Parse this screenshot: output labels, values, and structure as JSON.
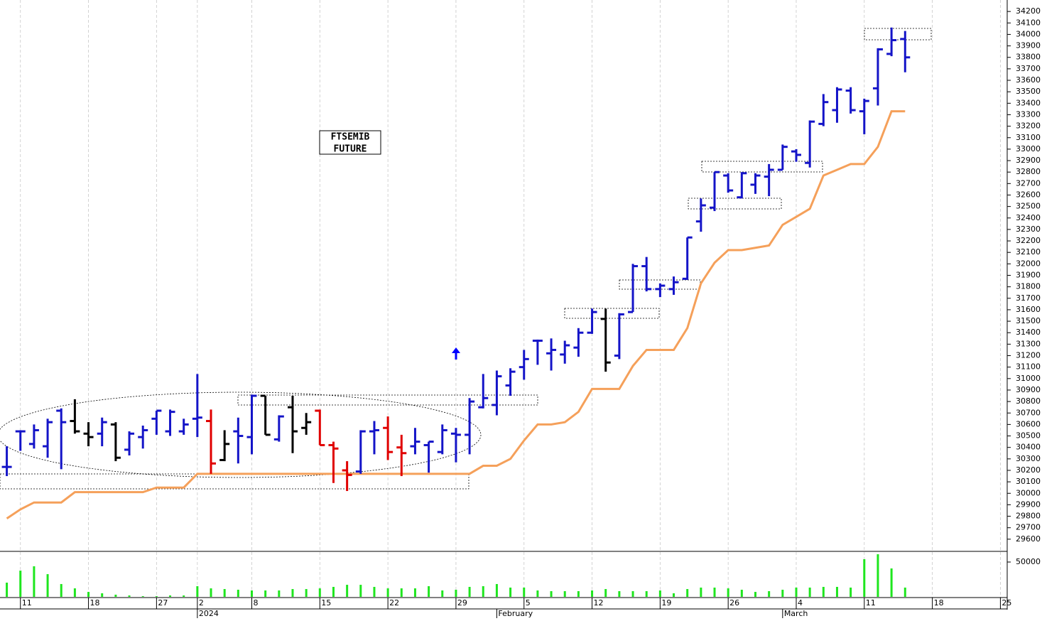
{
  "chart_data": [
    {
      "type": "ohlc",
      "title_lines": [
        "FTSEMIB",
        "FUTURE"
      ],
      "open": [
        30230,
        30540,
        30430,
        30410,
        30720,
        30630,
        30520,
        30520,
        30600,
        30380,
        30490,
        30650,
        30540,
        30540,
        30650,
        30630,
        30290,
        30540,
        30490,
        30850,
        30470,
        30750,
        30570,
        30720,
        30420,
        30200,
        30190,
        30540,
        30570,
        30400,
        30410,
        30420,
        30360,
        30520,
        30510,
        30750,
        30770,
        30940,
        31100,
        31330,
        31220,
        31210,
        31270,
        31400,
        31520,
        31200,
        31580,
        31980,
        31780,
        31780,
        31870,
        32370,
        32490,
        32770,
        32580,
        32690,
        32760,
        32820,
        32980,
        32880,
        33220,
        33340,
        33510,
        33330,
        33530,
        33830,
        33960
      ],
      "high": [
        30410,
        30550,
        30600,
        30650,
        30740,
        30820,
        30620,
        30660,
        30620,
        30540,
        30590,
        30720,
        30730,
        30650,
        31040,
        30730,
        30550,
        30660,
        30860,
        30850,
        30680,
        30850,
        30700,
        30730,
        30450,
        30280,
        30550,
        30630,
        30670,
        30510,
        30570,
        30450,
        30600,
        30570,
        30830,
        31040,
        31070,
        31090,
        31250,
        31340,
        31350,
        31330,
        31440,
        31610,
        31610,
        31570,
        32000,
        32060,
        31830,
        31890,
        32230,
        32570,
        32800,
        32790,
        32800,
        32790,
        32870,
        33040,
        33000,
        33250,
        33480,
        33540,
        33540,
        33440,
        33880,
        34060,
        34030
      ],
      "low": [
        30150,
        30370,
        30390,
        30310,
        30210,
        30520,
        30410,
        30410,
        30280,
        30330,
        30390,
        30510,
        30500,
        30510,
        30490,
        30170,
        30280,
        30260,
        30340,
        30510,
        30450,
        30350,
        30510,
        30420,
        30090,
        30020,
        30170,
        30340,
        30290,
        30150,
        30340,
        30180,
        30340,
        30270,
        30340,
        30740,
        30680,
        30850,
        30990,
        31120,
        31070,
        31130,
        31190,
        31390,
        31060,
        31170,
        31580,
        31760,
        31710,
        31730,
        31860,
        32280,
        32460,
        32620,
        32570,
        32610,
        32590,
        32820,
        32890,
        32840,
        33200,
        33230,
        33310,
        33130,
        33380,
        33810,
        33670
      ],
      "close": [
        30230,
        30540,
        30550,
        30620,
        30620,
        30540,
        30490,
        30620,
        30310,
        30520,
        30550,
        30720,
        30710,
        30600,
        30660,
        30260,
        30430,
        30500,
        30850,
        30510,
        30670,
        30540,
        30620,
        30420,
        30390,
        30160,
        30540,
        30550,
        30360,
        30350,
        30450,
        30450,
        30550,
        30510,
        30800,
        30830,
        31020,
        31060,
        31170,
        31330,
        31250,
        31290,
        31400,
        31580,
        31140,
        31560,
        31980,
        31780,
        31810,
        31840,
        32230,
        32510,
        32800,
        32640,
        32790,
        32770,
        32820,
        33020,
        32950,
        33240,
        33410,
        33520,
        33340,
        33420,
        33870,
        33950,
        33800
      ],
      "colors": [
        "#1414c8",
        "#1414c8",
        "#1414c8",
        "#1414c8",
        "#1414c8",
        "#000000",
        "#000000",
        "#1414c8",
        "#000000",
        "#1414c8",
        "#1414c8",
        "#1414c8",
        "#1414c8",
        "#1414c8",
        "#1414c8",
        "#e00000",
        "#000000",
        "#1414c8",
        "#1414c8",
        "#000000",
        "#1414c8",
        "#000000",
        "#000000",
        "#e00000",
        "#e00000",
        "#e00000",
        "#1414c8",
        "#1414c8",
        "#e00000",
        "#e00000",
        "#1414c8",
        "#1414c8",
        "#1414c8",
        "#1414c8",
        "#1414c8",
        "#1414c8",
        "#1414c8",
        "#1414c8",
        "#1414c8",
        "#1414c8",
        "#1414c8",
        "#1414c8",
        "#1414c8",
        "#1414c8",
        "#000000",
        "#1414c8",
        "#1414c8",
        "#1414c8",
        "#1414c8",
        "#1414c8",
        "#1414c8",
        "#1414c8",
        "#1414c8",
        "#1414c8",
        "#1414c8",
        "#1414c8",
        "#1414c8",
        "#1414c8",
        "#1414c8",
        "#1414c8",
        "#1414c8",
        "#1414c8",
        "#1414c8",
        "#1414c8",
        "#1414c8",
        "#1414c8",
        "#1414c8"
      ],
      "line": {
        "color": "#f5a05a",
        "values": [
          29780,
          29860,
          29920,
          29920,
          29920,
          30010,
          30010,
          30010,
          30010,
          30010,
          30010,
          30050,
          30050,
          30050,
          30170,
          30170,
          30170,
          30170,
          30170,
          30170,
          30170,
          30170,
          30170,
          30170,
          30170,
          30170,
          30170,
          30170,
          30170,
          30170,
          30170,
          30170,
          30170,
          30170,
          30170,
          30240,
          30240,
          30300,
          30460,
          30600,
          30600,
          30620,
          30710,
          30910,
          30910,
          30910,
          31110,
          31250,
          31250,
          31250,
          31440,
          31830,
          32010,
          32120,
          32120,
          32140,
          32160,
          32340,
          32410,
          32480,
          32770,
          32820,
          32870,
          32870,
          33020,
          33330,
          33330
        ]
      },
      "xlim": [
        -0.5,
        73.5
      ],
      "ylim": [
        29500,
        34300
      ],
      "yticks": [
        29600,
        29700,
        29800,
        29900,
        30000,
        30100,
        30200,
        30300,
        30400,
        30500,
        30600,
        30700,
        30800,
        30900,
        31000,
        31100,
        31200,
        31300,
        31400,
        31500,
        31600,
        31700,
        31800,
        31900,
        32000,
        32100,
        32200,
        32300,
        32400,
        32500,
        32600,
        32700,
        32800,
        32900,
        33000,
        33100,
        33200,
        33300,
        33400,
        33500,
        33600,
        33700,
        33800,
        33900,
        34000,
        34100,
        34200
      ],
      "xticks": [
        {
          "value": 1,
          "label": "11"
        },
        {
          "value": 6,
          "label": "18"
        },
        {
          "value": 11,
          "label": "27"
        },
        {
          "value": 14,
          "label": "2"
        },
        {
          "value": 18,
          "label": "8"
        },
        {
          "value": 23,
          "label": "15"
        },
        {
          "value": 28,
          "label": "22"
        },
        {
          "value": 33,
          "label": "29"
        },
        {
          "value": 38,
          "label": "5"
        },
        {
          "value": 43,
          "label": "12"
        },
        {
          "value": 48,
          "label": "19"
        },
        {
          "value": 53,
          "label": "26"
        },
        {
          "value": 58,
          "label": "4"
        },
        {
          "value": 63,
          "label": "11"
        },
        {
          "value": 68,
          "label": "18"
        },
        {
          "value": 73,
          "label": "25"
        }
      ],
      "xticks_secondary": [
        {
          "value": 14,
          "label": "2024"
        },
        {
          "value": 36,
          "label": "February"
        },
        {
          "value": 57,
          "label": "March"
        }
      ],
      "grid": true
    },
    {
      "type": "bar",
      "color": "#1ee61e",
      "values": [
        20400,
        37700,
        43900,
        32600,
        18400,
        12200,
        7100,
        5100,
        3100,
        2000,
        1000,
        1000,
        2000,
        2000,
        15300,
        12200,
        11200,
        10200,
        9200,
        9200,
        9200,
        11200,
        11200,
        12200,
        14300,
        17300,
        17300,
        14300,
        12200,
        12200,
        12200,
        15300,
        9200,
        10200,
        14300,
        15300,
        18400,
        13300,
        13300,
        9200,
        8200,
        8200,
        8200,
        9200,
        11200,
        8200,
        8200,
        8200,
        9200,
        5100,
        11200,
        13300,
        13300,
        12200,
        10200,
        7100,
        8200,
        10200,
        13300,
        13300,
        14300,
        14300,
        13300,
        54100,
        61200,
        40800,
        13300
      ],
      "ylim": [
        0,
        64300
      ],
      "yticks": [
        50000
      ]
    }
  ]
}
